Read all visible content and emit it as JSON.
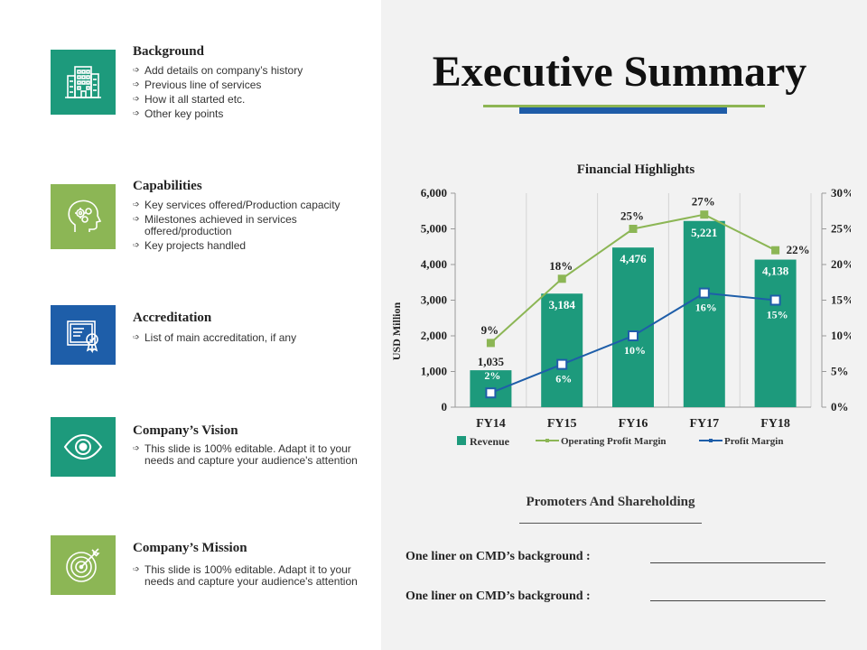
{
  "colors": {
    "teal": "#1d9a7c",
    "green": "#8cb655",
    "blue": "#1e5ea9",
    "panel": "#f2f2f2"
  },
  "sections": [
    {
      "title": "Background",
      "icon": "building-icon",
      "color": "#1d9a7c",
      "bullets": [
        "Add details on company’s history",
        "Previous  line of services",
        "How it all started etc.",
        "Other key points"
      ]
    },
    {
      "title": "Capabilities",
      "icon": "head-gears-icon",
      "color": "#8cb655",
      "bullets": [
        "Key services offered/Production  capacity",
        "Milestones achieved  in services offered/production",
        "Key projects handled"
      ]
    },
    {
      "title": "Accreditation",
      "icon": "certificate-icon",
      "color": "#1e5ea9",
      "bullets": [
        "List of main accreditation, if any"
      ]
    },
    {
      "title": "Company’s Vision",
      "icon": "eye-icon",
      "color": "#1d9a7c",
      "bullets": [
        "This slide is 100% editable. Adapt it to your needs and capture your audience's attention"
      ]
    },
    {
      "title": "Company’s Mission",
      "icon": "target-icon",
      "color": "#8cb655",
      "bullets": [
        "This slide is 100% editable. Adapt it to your needs and capture your audience's attention"
      ]
    }
  ],
  "header": {
    "title": "Executive Summary"
  },
  "chart_data": {
    "type": "bar",
    "title": "Financial Highlights",
    "categories": [
      "FY14",
      "FY15",
      "FY16",
      "FY17",
      "FY18"
    ],
    "ylabel": "USD Million",
    "ylim": [
      0,
      6000
    ],
    "y_ticks": [
      "0",
      "1,000",
      "2,000",
      "3,000",
      "4,000",
      "5,000",
      "6,000"
    ],
    "y2lim": [
      0,
      30
    ],
    "y2_ticks": [
      "0%",
      "5%",
      "10%",
      "15%",
      "20%",
      "25%",
      "30%"
    ],
    "grid": false,
    "legend_position": "bottom",
    "series": [
      {
        "name": "Revenue",
        "kind": "bar",
        "axis": "left",
        "color": "#1d9a7c",
        "values": [
          1035,
          3184,
          4476,
          5221,
          4138
        ],
        "labels": [
          "1,035",
          "3,184",
          "4,476",
          "5,221",
          "4,138"
        ]
      },
      {
        "name": "Operating Profit Margin",
        "kind": "line",
        "axis": "right",
        "color": "#8cb655",
        "values": [
          9,
          18,
          25,
          27,
          22
        ],
        "labels": [
          "9%",
          "18%",
          "25%",
          "27%",
          "22%"
        ]
      },
      {
        "name": "Profit Margin",
        "kind": "line",
        "axis": "right",
        "color": "#1e5ea9",
        "values": [
          2,
          6,
          10,
          16,
          15
        ],
        "labels": [
          "2%",
          "6%",
          "10%",
          "16%",
          "15%"
        ]
      }
    ]
  },
  "promoters": {
    "title": "Promoters And Shareholding",
    "lines": [
      "One liner on CMD’s background :",
      "One liner on CMD’s background :"
    ]
  }
}
